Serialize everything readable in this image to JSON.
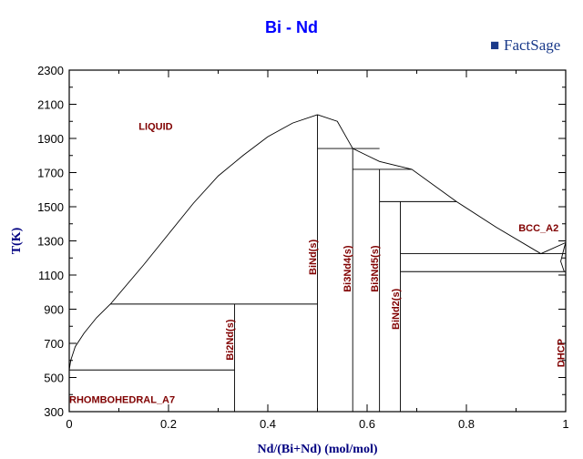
{
  "title": "Bi - Nd",
  "logo": {
    "text": "FactSage",
    "brand_color": "#1a3a8a"
  },
  "chart_data": {
    "type": "line",
    "title": "Bi - Nd",
    "xlabel": "Nd/(Bi+Nd) (mol/mol)",
    "ylabel": "T(K)",
    "xlim": [
      0,
      1
    ],
    "ylim": [
      300,
      2300
    ],
    "xticks": [
      0,
      0.2,
      0.4,
      0.6,
      0.8,
      1
    ],
    "xtick_labels": [
      "0",
      "0.2",
      "0.4",
      "0.6",
      "0.8",
      "1"
    ],
    "yticks": [
      300,
      500,
      700,
      900,
      1100,
      1300,
      1500,
      1700,
      1900,
      2100,
      2300
    ],
    "grid": false,
    "lines": [
      {
        "points": [
          [
            0,
            544
          ],
          [
            0.003,
            600
          ],
          [
            0.012,
            680
          ],
          [
            0.03,
            760
          ],
          [
            0.055,
            850
          ],
          [
            0.083,
            930
          ],
          [
            0.15,
            1160
          ],
          [
            0.2,
            1340
          ],
          [
            0.25,
            1520
          ],
          [
            0.3,
            1680
          ],
          [
            0.35,
            1800
          ],
          [
            0.4,
            1910
          ],
          [
            0.45,
            1990
          ],
          [
            0.5,
            2039
          ]
        ]
      },
      {
        "points": [
          [
            0.5,
            2039
          ],
          [
            0.54,
            2000
          ],
          [
            0.571,
            1841
          ],
          [
            0.6,
            1800
          ],
          [
            0.625,
            1765
          ],
          [
            0.69,
            1719
          ],
          [
            0.78,
            1530
          ],
          [
            0.86,
            1380
          ],
          [
            0.95,
            1225
          ],
          [
            1,
            1290
          ]
        ]
      },
      {
        "points": [
          [
            0.083,
            930
          ],
          [
            0.5,
            930
          ]
        ]
      },
      {
        "points": [
          [
            0,
            544
          ],
          [
            0.333,
            544
          ]
        ]
      },
      {
        "points": [
          [
            0.5,
            1841
          ],
          [
            0.625,
            1841
          ]
        ]
      },
      {
        "points": [
          [
            0.571,
            1719
          ],
          [
            0.69,
            1719
          ]
        ]
      },
      {
        "points": [
          [
            0.625,
            1530
          ],
          [
            0.78,
            1530
          ]
        ]
      },
      {
        "points": [
          [
            0.667,
            1225
          ],
          [
            1,
            1225
          ]
        ]
      },
      {
        "points": [
          [
            0.667,
            1120
          ],
          [
            1,
            1120
          ]
        ]
      },
      {
        "points": [
          [
            0.333,
            300
          ],
          [
            0.333,
            930
          ]
        ]
      },
      {
        "points": [
          [
            0.5,
            300
          ],
          [
            0.5,
            2039
          ]
        ]
      },
      {
        "points": [
          [
            0.571,
            300
          ],
          [
            0.571,
            1841
          ]
        ]
      },
      {
        "points": [
          [
            0.625,
            300
          ],
          [
            0.625,
            1719
          ]
        ]
      },
      {
        "points": [
          [
            0.667,
            300
          ],
          [
            0.667,
            1530
          ]
        ]
      },
      {
        "points": [
          [
            0.997,
            1120
          ],
          [
            0.99,
            1180
          ],
          [
            0.997,
            1260
          ],
          [
            1,
            1290
          ]
        ]
      }
    ],
    "annotations": [
      {
        "text": "LIQUID",
        "x": 0.14,
        "y": 1950
      },
      {
        "text": "BCC_A2",
        "x": 0.905,
        "y": 1355
      },
      {
        "text": "RHOMBOHEDRAL_A7",
        "x": 0,
        "y": 350
      },
      {
        "text": "Bi2Nd(s)",
        "x": 0.33,
        "y": 600,
        "vertical": true
      },
      {
        "text": "BiNd(s)",
        "x": 0.497,
        "y": 1100,
        "vertical": true
      },
      {
        "text": "Bi3Nd4(s)",
        "x": 0.567,
        "y": 1000,
        "vertical": true
      },
      {
        "text": "Bi3Nd5(s)",
        "x": 0.622,
        "y": 1000,
        "vertical": true
      },
      {
        "text": "BiNd2(s)",
        "x": 0.664,
        "y": 780,
        "vertical": true
      },
      {
        "text": "DHCP",
        "x": 0.997,
        "y": 560,
        "vertical": true
      }
    ]
  }
}
